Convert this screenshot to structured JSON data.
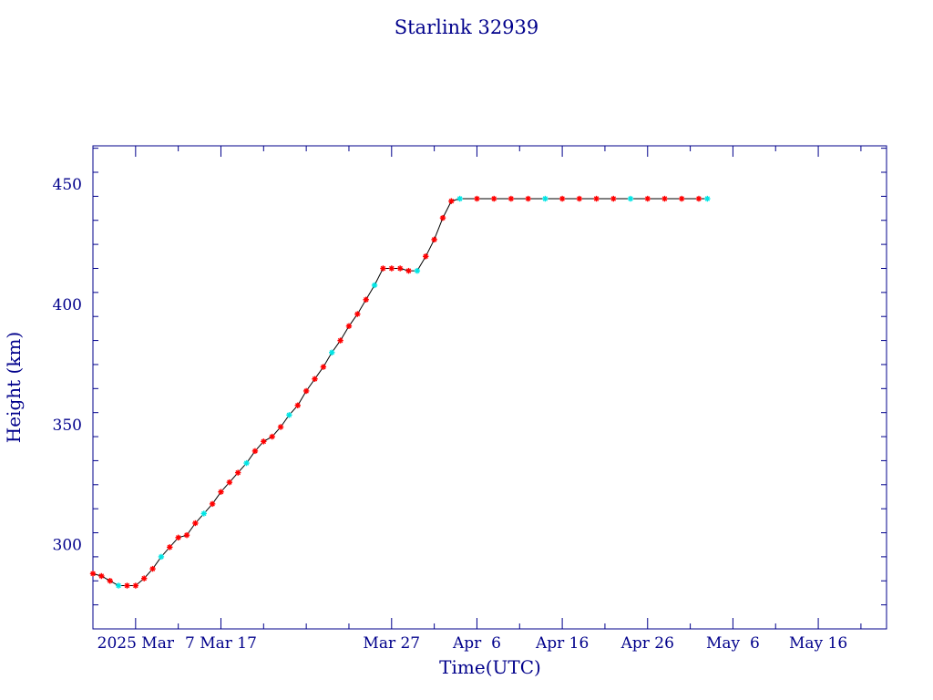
{
  "colors": {
    "axis": "#00008b",
    "text": "#00008b",
    "line": "#000000",
    "marker_primary": "#ff0000",
    "marker_secondary": "#00e5e5"
  },
  "chart_data": {
    "type": "scatter",
    "title": "Starlink 32939",
    "xlabel": "Time(UTC)",
    "ylabel": "Height (km)",
    "x_unit": "date",
    "xlim": [
      "2025-02-20",
      "2025-05-24"
    ],
    "ylim": [
      265,
      466
    ],
    "x_ticks": [
      {
        "date": "2025-02-25",
        "label": "2025 Mar"
      },
      {
        "date": "2025-03-07",
        "label": "7 Mar 17"
      },
      {
        "date": "2025-03-27",
        "label": "Mar 27"
      },
      {
        "date": "2025-04-06",
        "label": "Apr  6"
      },
      {
        "date": "2025-04-16",
        "label": "Apr 16"
      },
      {
        "date": "2025-04-26",
        "label": "Apr 26"
      },
      {
        "date": "2025-05-06",
        "label": "May  6"
      },
      {
        "date": "2025-05-16",
        "label": "May 16"
      }
    ],
    "y_ticks": [
      300,
      350,
      400,
      450
    ],
    "grid": false,
    "series": [
      {
        "marker": "asterisk",
        "connected": true,
        "points": [
          [
            "2025-02-20",
            288
          ],
          [
            "2025-02-21",
            287
          ],
          [
            "2025-02-22",
            285
          ],
          [
            "2025-02-23",
            283
          ],
          [
            "2025-02-24",
            283
          ],
          [
            "2025-02-25",
            283
          ],
          [
            "2025-02-26",
            286
          ],
          [
            "2025-02-27",
            290
          ],
          [
            "2025-02-28",
            295
          ],
          [
            "2025-03-01",
            299
          ],
          [
            "2025-03-02",
            303
          ],
          [
            "2025-03-03",
            304
          ],
          [
            "2025-03-04",
            309
          ],
          [
            "2025-03-05",
            313
          ],
          [
            "2025-03-06",
            317
          ],
          [
            "2025-03-07",
            322
          ],
          [
            "2025-03-08",
            326
          ],
          [
            "2025-03-09",
            330
          ],
          [
            "2025-03-10",
            334
          ],
          [
            "2025-03-11",
            339
          ],
          [
            "2025-03-12",
            343
          ],
          [
            "2025-03-13",
            345
          ],
          [
            "2025-03-14",
            349
          ],
          [
            "2025-03-15",
            354
          ],
          [
            "2025-03-16",
            358
          ],
          [
            "2025-03-17",
            364
          ],
          [
            "2025-03-18",
            369
          ],
          [
            "2025-03-19",
            374
          ],
          [
            "2025-03-20",
            380
          ],
          [
            "2025-03-21",
            385
          ],
          [
            "2025-03-22",
            391
          ],
          [
            "2025-03-23",
            396
          ],
          [
            "2025-03-24",
            402
          ],
          [
            "2025-03-25",
            408
          ],
          [
            "2025-03-26",
            415
          ],
          [
            "2025-03-27",
            415
          ],
          [
            "2025-03-28",
            415
          ],
          [
            "2025-03-29",
            414
          ],
          [
            "2025-03-30",
            414
          ],
          [
            "2025-03-31",
            420
          ],
          [
            "2025-04-01",
            427
          ],
          [
            "2025-04-02",
            436
          ],
          [
            "2025-04-03",
            443
          ],
          [
            "2025-04-04",
            444
          ],
          [
            "2025-04-06",
            444
          ],
          [
            "2025-04-08",
            444
          ],
          [
            "2025-04-10",
            444
          ],
          [
            "2025-04-12",
            444
          ],
          [
            "2025-04-14",
            444
          ],
          [
            "2025-04-16",
            444
          ],
          [
            "2025-04-18",
            444
          ],
          [
            "2025-04-20",
            444
          ],
          [
            "2025-04-22",
            444
          ],
          [
            "2025-04-24",
            444
          ],
          [
            "2025-04-26",
            444
          ],
          [
            "2025-04-28",
            444
          ],
          [
            "2025-04-30",
            444
          ],
          [
            "2025-05-02",
            444
          ],
          [
            "2025-05-03",
            444
          ]
        ]
      }
    ]
  }
}
